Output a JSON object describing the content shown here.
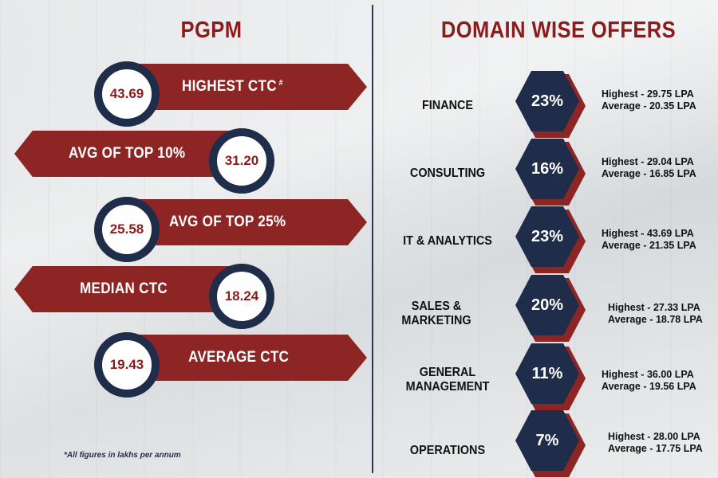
{
  "left": {
    "title": "PGPM",
    "metrics": [
      {
        "value": "43.69",
        "label": "HIGHEST CTC",
        "mark": "#"
      },
      {
        "value": "31.20",
        "label": "AVG OF TOP 10%"
      },
      {
        "value": "25.58",
        "label": "AVG OF TOP 25%"
      },
      {
        "value": "18.24",
        "label": "MEDIAN CTC"
      },
      {
        "value": "19.43",
        "label": "AVERAGE CTC"
      }
    ],
    "footnote": "*All figures in lakhs per annum"
  },
  "right": {
    "title": "DOMAIN WISE OFFERS",
    "domains": [
      {
        "name_line1": "FINANCE",
        "name_line2": "",
        "percent": "23%",
        "highest": "Highest - 29.75 LPA",
        "average": "Average - 20.35 LPA"
      },
      {
        "name_line1": "CONSULTING",
        "name_line2": "",
        "percent": "16%",
        "highest": "Highest - 29.04 LPA",
        "average": "Average - 16.85 LPA"
      },
      {
        "name_line1": "IT & ANALYTICS",
        "name_line2": "",
        "percent": "23%",
        "highest": "Highest - 43.69 LPA",
        "average": "Average - 21.35 LPA"
      },
      {
        "name_line1": "SALES &",
        "name_line2": "MARKETING",
        "percent": "20%",
        "highest": "Highest - 27.33 LPA",
        "average": "Average - 18.78 LPA"
      },
      {
        "name_line1": "GENERAL",
        "name_line2": "MANAGEMENT",
        "percent": "11%",
        "highest": "Highest - 36.00 LPA",
        "average": "Average - 19.56 LPA"
      },
      {
        "name_line1": "OPERATIONS",
        "name_line2": "",
        "percent": "7%",
        "highest": "Highest - 28.00 LPA",
        "average": "Average - 17.75 LPA"
      }
    ]
  },
  "colors": {
    "maroon": "#8e2525",
    "navy": "#1f2d4a"
  }
}
